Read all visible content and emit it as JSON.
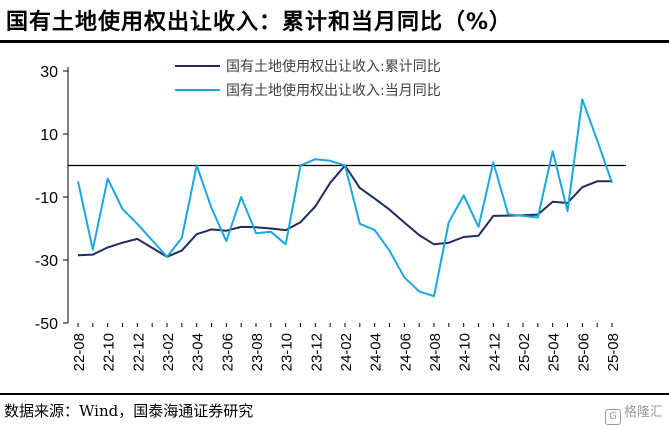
{
  "title": "国有土地使用权出让收入：累计和当月同比（%）",
  "source": "数据来源：Wind，国泰海通证券研究",
  "watermark": "格隆汇",
  "colors": {
    "cumulative": "#1f2d5c",
    "monthly": "#1aa8e0",
    "axis": "#000000"
  },
  "chart_data": {
    "type": "line",
    "title": "",
    "xlabel": "",
    "ylabel": "",
    "ylim": [
      -50,
      30
    ],
    "yticks": [
      30,
      10,
      -10,
      -30,
      -50
    ],
    "grid": false,
    "legend_position": "top-center",
    "x": [
      "22-08",
      "22-09",
      "22-10",
      "22-11",
      "22-12",
      "23-01",
      "23-02",
      "23-03",
      "23-04",
      "23-05",
      "23-06",
      "23-07",
      "23-08",
      "23-09",
      "23-10",
      "23-11",
      "23-12",
      "24-01",
      "24-02",
      "24-03",
      "24-04",
      "24-05",
      "24-06",
      "24-07",
      "24-08",
      "24-09",
      "24-10",
      "24-11",
      "24-12",
      "25-01",
      "25-02",
      "25-03",
      "25-04",
      "25-05",
      "25-06",
      "25-07",
      "25-08"
    ],
    "xtick_labels": [
      "22-08",
      "22-10",
      "22-12",
      "23-02",
      "23-04",
      "23-06",
      "23-08",
      "23-10",
      "23-12",
      "24-02",
      "24-04",
      "24-06",
      "24-08",
      "24-10",
      "24-12",
      "25-02",
      "25-04",
      "25-06",
      "25-08"
    ],
    "series": [
      {
        "name": "国有土地使用权出让收入:累计同比",
        "color": "#1f2d5c",
        "values": [
          -28.5,
          -28.3,
          -26.0,
          -24.5,
          -23.3,
          null,
          -29.0,
          -27.0,
          -21.8,
          -20.3,
          -20.7,
          -19.5,
          -19.6,
          -20.0,
          -20.5,
          -18.0,
          -13.0,
          -5.5,
          0.0,
          -7.1,
          -10.5,
          -14.0,
          -18.1,
          -22.1,
          -25.0,
          -24.5,
          -22.7,
          -22.3,
          -16.0,
          -15.9,
          -15.8,
          -15.6,
          -11.5,
          -11.9,
          -6.9,
          -5.0,
          -5.0
        ]
      },
      {
        "name": "国有土地使用权出让收入:当月同比",
        "color": "#1aa8e0",
        "values": [
          -5.0,
          -26.7,
          -4.2,
          -13.8,
          -18.5,
          null,
          -29.0,
          -23.0,
          0.0,
          -13.5,
          -24.0,
          -10.0,
          -21.5,
          -21.0,
          -25.0,
          0.0,
          2.0,
          1.5,
          0.0,
          -18.5,
          -20.5,
          -27.0,
          -35.5,
          -40.0,
          -41.5,
          -18.0,
          -9.5,
          -19.5,
          1.0,
          -15.5,
          -16.0,
          -16.5,
          4.5,
          -14.5,
          21.0,
          8.0,
          -5.5
        ]
      }
    ]
  }
}
